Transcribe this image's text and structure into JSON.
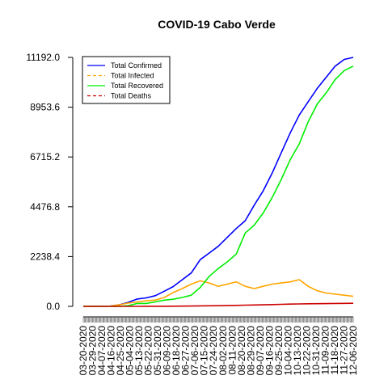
{
  "chart_data": {
    "type": "line",
    "title": "COVID-19 Cabo Verde",
    "xlabel": "",
    "ylabel": "",
    "ylim": [
      0,
      11192
    ],
    "y_ticks": [
      "0.0",
      "2238.4",
      "4476.8",
      "6715.2",
      "8953.6",
      "11192.0"
    ],
    "x_tick_labels": [
      "03-20-2020",
      "03-29-2020",
      "04-07-2020",
      "04-16-2020",
      "04-25-2020",
      "05-04-2020",
      "05-13-2020",
      "05-22-2020",
      "05-31-2020",
      "06-09-2020",
      "06-18-2020",
      "06-27-2020",
      "07-06-2020",
      "07-15-2020",
      "07-24-2020",
      "08-02-2020",
      "08-11-2020",
      "08-20-2020",
      "08-29-2020",
      "09-07-2020",
      "09-16-2020",
      "09-25-2020",
      "10-04-2020",
      "10-13-2020",
      "10-22-2020",
      "10-31-2020",
      "11-09-2020",
      "11-18-2020",
      "11-27-2020",
      "12-06-2020"
    ],
    "legend_position": "top-left",
    "grid": false,
    "series": [
      {
        "name": "Total Confirmed",
        "color": "#0000ff",
        "line_style": "solid",
        "values": [
          2,
          6,
          8,
          10,
          70,
          180,
          330,
          380,
          480,
          680,
          890,
          1200,
          1500,
          2100,
          2400,
          2700,
          3100,
          3500,
          3850,
          4550,
          5200,
          6000,
          6900,
          7800,
          8600,
          9200,
          9800,
          10300,
          10800,
          11100,
          11192
        ]
      },
      {
        "name": "Total Infected",
        "color": "#ffa500",
        "line_style": "dashed",
        "values": [
          2,
          6,
          8,
          10,
          70,
          150,
          200,
          250,
          280,
          400,
          620,
          800,
          1000,
          1150,
          1050,
          900,
          1000,
          1100,
          900,
          800,
          900,
          1000,
          1050,
          1100,
          1200,
          900,
          700,
          600,
          550,
          500,
          450
        ]
      },
      {
        "name": "Total Recovered",
        "color": "#00ee00",
        "line_style": "solid",
        "values": [
          0,
          0,
          0,
          0,
          0,
          30,
          130,
          130,
          200,
          280,
          320,
          400,
          500,
          850,
          1350,
          1700,
          2000,
          2350,
          3300,
          3650,
          4200,
          4900,
          5700,
          6600,
          7300,
          8300,
          9100,
          9600,
          10200,
          10600,
          10800
        ]
      },
      {
        "name": "Total Deaths",
        "color": "#cc0000",
        "line_style": "dashed",
        "values": [
          0,
          0,
          0,
          0,
          0,
          1,
          1,
          2,
          3,
          5,
          8,
          12,
          15,
          20,
          25,
          30,
          40,
          45,
          55,
          60,
          70,
          80,
          90,
          100,
          110,
          115,
          120,
          125,
          130,
          135,
          137
        ]
      }
    ]
  }
}
